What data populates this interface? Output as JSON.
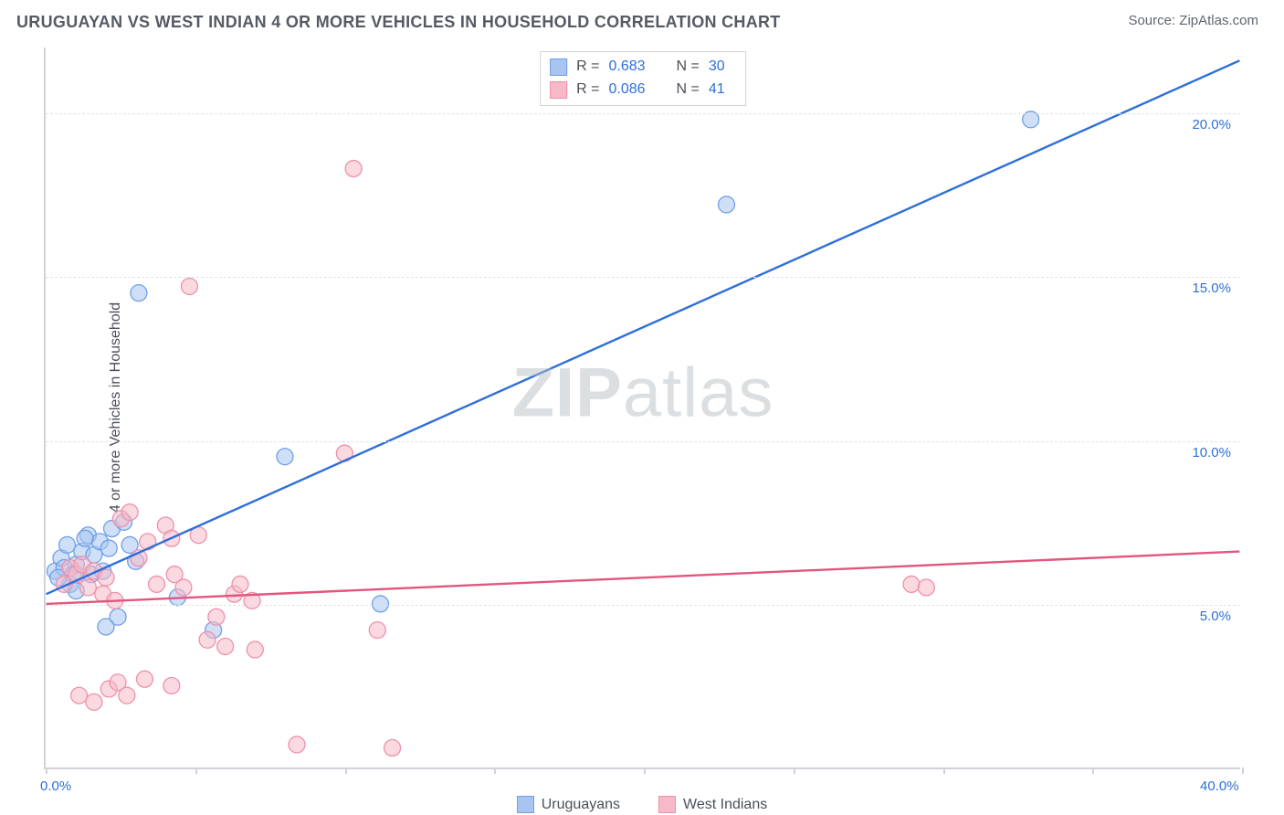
{
  "header": {
    "title": "URUGUAYAN VS WEST INDIAN 4 OR MORE VEHICLES IN HOUSEHOLD CORRELATION CHART",
    "source": "Source: ZipAtlas.com"
  },
  "watermark": {
    "bold": "ZIP",
    "rest": "atlas"
  },
  "chart": {
    "type": "scatter",
    "ylabel": "4 or more Vehicles in Household",
    "xlim": [
      0,
      40
    ],
    "ylim": [
      0,
      22
    ],
    "ytick_labels": [
      {
        "v": 5,
        "label": "5.0%"
      },
      {
        "v": 10,
        "label": "10.0%"
      },
      {
        "v": 15,
        "label": "15.0%"
      },
      {
        "v": 20,
        "label": "20.0%"
      }
    ],
    "xtick_positions": [
      0,
      5,
      10,
      15,
      20,
      25,
      30,
      35,
      40
    ],
    "xlabel_min": "0.0%",
    "xlabel_max": "40.0%",
    "background_color": "#ffffff",
    "grid_color": "#dfe3e8",
    "axis_color": "#cfd3d9",
    "marker_radius": 9,
    "marker_opacity": 0.55,
    "line_width": 2.4,
    "series": [
      {
        "name": "Uruguayans",
        "color": "#2e6fd9",
        "fill": "#a8c5f0",
        "stroke": "#6fa0e6",
        "R": "0.683",
        "N": "30",
        "trend": {
          "x1": 0,
          "y1": 5.3,
          "x2": 40,
          "y2": 21.6
        },
        "points": [
          [
            0.3,
            6.0
          ],
          [
            0.5,
            6.4
          ],
          [
            0.8,
            5.6
          ],
          [
            0.7,
            6.8
          ],
          [
            1.0,
            6.2
          ],
          [
            1.2,
            6.6
          ],
          [
            1.5,
            5.9
          ],
          [
            1.6,
            6.5
          ],
          [
            1.0,
            5.4
          ],
          [
            1.4,
            7.1
          ],
          [
            1.8,
            6.9
          ],
          [
            2.2,
            7.3
          ],
          [
            2.6,
            7.5
          ],
          [
            2.4,
            4.6
          ],
          [
            3.0,
            6.3
          ],
          [
            3.1,
            14.5
          ],
          [
            0.6,
            6.1
          ],
          [
            0.9,
            5.9
          ],
          [
            2.1,
            6.7
          ],
          [
            2.0,
            4.3
          ],
          [
            4.4,
            5.2
          ],
          [
            5.6,
            4.2
          ],
          [
            8.0,
            9.5
          ],
          [
            11.2,
            5.0
          ],
          [
            22.8,
            17.2
          ],
          [
            33.0,
            19.8
          ],
          [
            1.9,
            6.0
          ],
          [
            0.4,
            5.8
          ],
          [
            1.3,
            7.0
          ],
          [
            2.8,
            6.8
          ]
        ]
      },
      {
        "name": "West Indians",
        "color": "#e2567e",
        "fill": "#f6b9c8",
        "stroke": "#ef90aa",
        "R": "0.086",
        "N": "41",
        "trend": {
          "x1": 0,
          "y1": 5.0,
          "x2": 40,
          "y2": 6.6
        },
        "points": [
          [
            0.6,
            5.6
          ],
          [
            0.8,
            6.1
          ],
          [
            1.0,
            5.9
          ],
          [
            1.2,
            6.2
          ],
          [
            1.4,
            5.5
          ],
          [
            1.6,
            6.0
          ],
          [
            1.9,
            5.3
          ],
          [
            2.0,
            5.8
          ],
          [
            2.3,
            5.1
          ],
          [
            2.5,
            7.6
          ],
          [
            2.8,
            7.8
          ],
          [
            3.1,
            6.4
          ],
          [
            3.4,
            6.9
          ],
          [
            3.7,
            5.6
          ],
          [
            4.0,
            7.4
          ],
          [
            4.3,
            5.9
          ],
          [
            4.6,
            5.5
          ],
          [
            4.8,
            14.7
          ],
          [
            5.1,
            7.1
          ],
          [
            5.4,
            3.9
          ],
          [
            5.7,
            4.6
          ],
          [
            6.0,
            3.7
          ],
          [
            6.3,
            5.3
          ],
          [
            1.1,
            2.2
          ],
          [
            1.6,
            2.0
          ],
          [
            2.1,
            2.4
          ],
          [
            2.4,
            2.6
          ],
          [
            3.3,
            2.7
          ],
          [
            4.2,
            2.5
          ],
          [
            2.7,
            2.2
          ],
          [
            6.5,
            5.6
          ],
          [
            7.0,
            3.6
          ],
          [
            8.4,
            0.7
          ],
          [
            10.3,
            18.3
          ],
          [
            11.1,
            4.2
          ],
          [
            11.6,
            0.6
          ],
          [
            10.0,
            9.6
          ],
          [
            4.2,
            7.0
          ],
          [
            29.0,
            5.6
          ],
          [
            29.5,
            5.5
          ],
          [
            6.9,
            5.1
          ]
        ]
      }
    ]
  },
  "legend_bottom": [
    {
      "label": "Uruguayans",
      "fill": "#a8c5f0",
      "stroke": "#6fa0e6"
    },
    {
      "label": "West Indians",
      "fill": "#f6b9c8",
      "stroke": "#ef90aa"
    }
  ]
}
